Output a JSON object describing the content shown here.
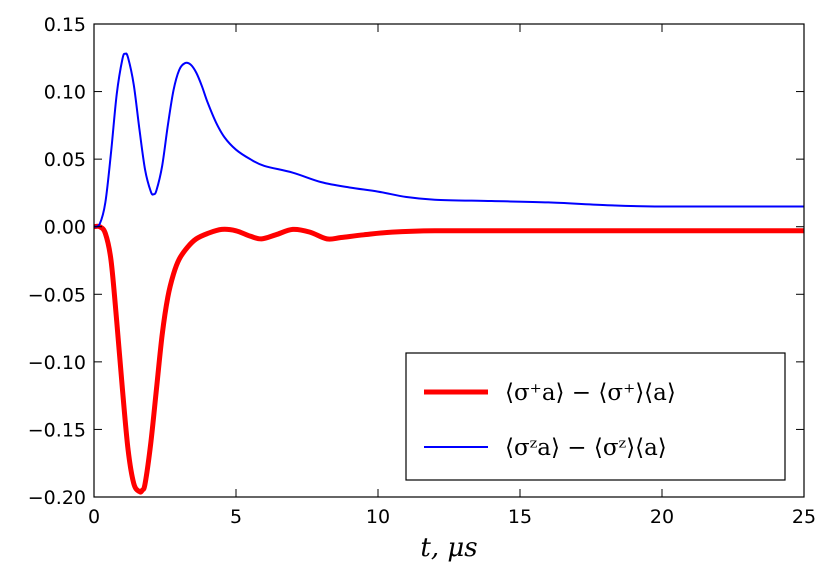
{
  "chart_data": {
    "type": "line",
    "xlabel": "t,  μs",
    "xlim": [
      0,
      25
    ],
    "ylim": [
      -0.2,
      0.15
    ],
    "xticks": [
      0,
      5,
      10,
      15,
      20,
      25
    ],
    "xtick_labels": [
      "0",
      "5",
      "10",
      "15",
      "20",
      "25"
    ],
    "yticks": [
      0.15,
      0.1,
      0.05,
      0.0,
      -0.05,
      -0.1,
      -0.15,
      -0.2
    ],
    "ytick_labels": [
      "0.15",
      "0.10",
      "0.05",
      "0.00",
      "−0.05",
      "−0.10",
      "−0.15",
      "−0.20"
    ],
    "grid": false,
    "legend_position": "lower-right",
    "series": [
      {
        "name": "⟨σ⁺a⟩ − ⟨σ⁺⟩⟨a⟩",
        "color": "#ff0000",
        "x": [
          0,
          0.2,
          0.4,
          0.6,
          0.8,
          1.0,
          1.2,
          1.4,
          1.6,
          1.7,
          1.8,
          2.0,
          2.2,
          2.4,
          2.6,
          2.8,
          3.0,
          3.3,
          3.6,
          4.0,
          4.5,
          5.0,
          5.5,
          5.9,
          6.4,
          7.0,
          7.6,
          8.2,
          8.7,
          9.5,
          10.5,
          12,
          15,
          20,
          25
        ],
        "y": [
          0.0,
          0.0,
          -0.005,
          -0.025,
          -0.07,
          -0.12,
          -0.165,
          -0.19,
          -0.196,
          -0.195,
          -0.19,
          -0.16,
          -0.12,
          -0.08,
          -0.052,
          -0.035,
          -0.024,
          -0.015,
          -0.009,
          -0.005,
          -0.002,
          -0.003,
          -0.007,
          -0.009,
          -0.006,
          -0.002,
          -0.004,
          -0.009,
          -0.008,
          -0.006,
          -0.004,
          -0.003,
          -0.003,
          -0.003,
          -0.003
        ]
      },
      {
        "name": "⟨σᶻa⟩ − ⟨σᶻ⟩⟨a⟩",
        "color": "#0000ff",
        "x": [
          0,
          0.2,
          0.4,
          0.6,
          0.8,
          1.0,
          1.1,
          1.2,
          1.4,
          1.6,
          1.8,
          2.0,
          2.1,
          2.2,
          2.4,
          2.6,
          2.8,
          3.0,
          3.2,
          3.4,
          3.6,
          3.8,
          4.0,
          4.3,
          4.6,
          5.0,
          5.5,
          6.0,
          7.0,
          8.0,
          9.0,
          10.0,
          11.0,
          12.0,
          14.0,
          16.0,
          18.0,
          20.0,
          25.0
        ],
        "y": [
          0.0,
          0.002,
          0.018,
          0.055,
          0.098,
          0.124,
          0.128,
          0.125,
          0.105,
          0.072,
          0.042,
          0.026,
          0.024,
          0.027,
          0.045,
          0.075,
          0.101,
          0.116,
          0.121,
          0.12,
          0.114,
          0.104,
          0.092,
          0.077,
          0.066,
          0.057,
          0.05,
          0.045,
          0.04,
          0.033,
          0.029,
          0.026,
          0.022,
          0.02,
          0.019,
          0.018,
          0.016,
          0.015,
          0.015
        ]
      }
    ]
  }
}
